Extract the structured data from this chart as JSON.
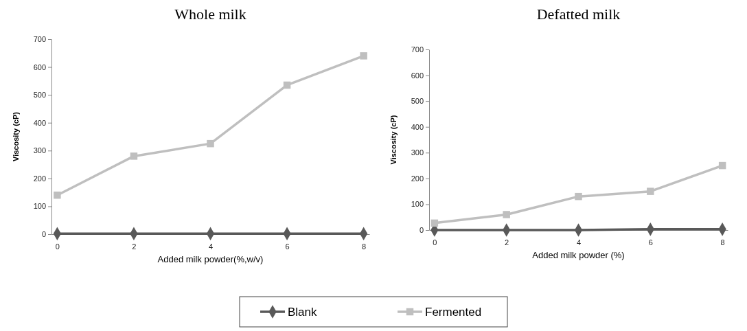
{
  "chart_data": [
    {
      "type": "line",
      "title": "Whole milk",
      "xlabel": "Added milk powder(%,w/v)",
      "ylabel": "Viscosity (cP)",
      "x": [
        0,
        2,
        4,
        6,
        8
      ],
      "xlim": [
        -0.15,
        8.15
      ],
      "xticks": [
        0,
        2,
        4,
        6,
        8
      ],
      "ylim": [
        0,
        700
      ],
      "yticks": [
        0,
        100,
        200,
        300,
        400,
        500,
        600,
        700
      ],
      "grid": false,
      "legend": "bottom",
      "series": [
        {
          "name": "Blank",
          "color": "#595959",
          "marker": "diamond",
          "values": [
            2,
            2,
            2,
            2,
            2
          ]
        },
        {
          "name": "Fermented",
          "color": "#bfbfbf",
          "marker": "square",
          "values": [
            140,
            280,
            325,
            535,
            640
          ]
        }
      ]
    },
    {
      "type": "line",
      "title": "Defatted milk",
      "xlabel": "Added milk powder (%)",
      "ylabel": "Viscosity (cP)",
      "x": [
        0,
        2,
        4,
        6,
        8
      ],
      "xlim": [
        -0.15,
        8.15
      ],
      "xticks": [
        0,
        2,
        4,
        6,
        8
      ],
      "ylim": [
        0,
        700
      ],
      "yticks": [
        0,
        100,
        200,
        300,
        400,
        500,
        600,
        700
      ],
      "grid": false,
      "series": [
        {
          "color": "#595959",
          "marker": "diamond",
          "values": [
            0,
            0,
            0,
            3,
            3
          ]
        },
        {
          "color": "#bfbfbf",
          "marker": "square",
          "values": [
            27,
            60,
            130,
            150,
            250
          ]
        }
      ]
    }
  ]
}
